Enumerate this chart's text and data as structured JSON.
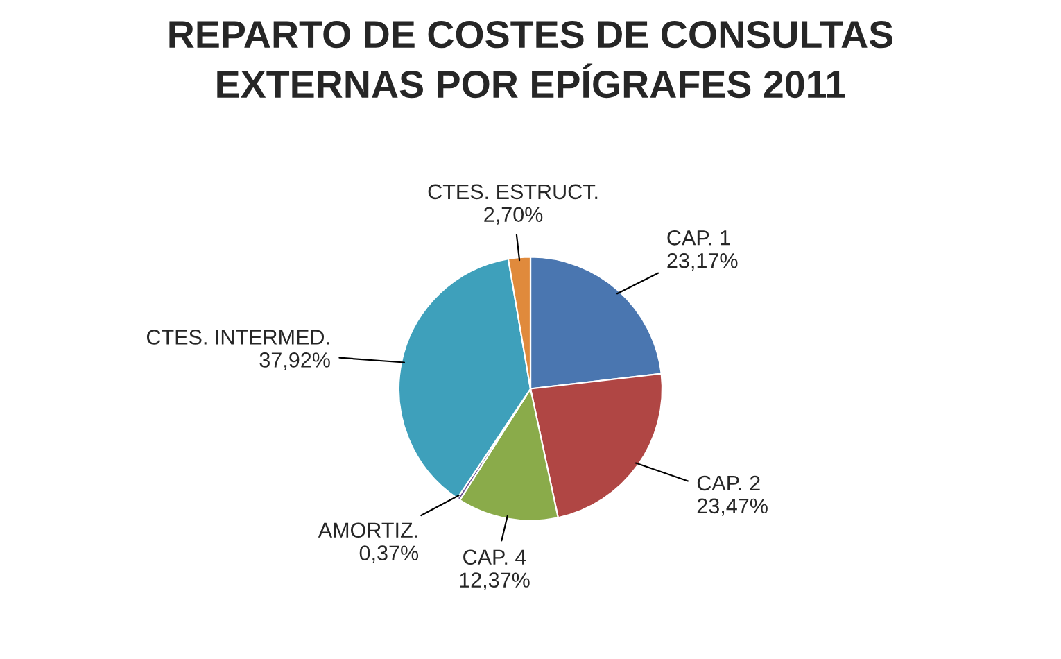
{
  "chart_data": {
    "type": "pie",
    "title": "REPARTO DE COSTES DE CONSULTAS\nEXTERNAS POR EPÍGRAFES 2011",
    "categories": [
      "CAP. 1",
      "CAP. 2",
      "CAP. 4",
      "AMORTIZ.",
      "CTES. INTERMED.",
      "CTES. ESTRUCT."
    ],
    "values": [
      23.17,
      23.47,
      12.37,
      0.37,
      37.92,
      2.7
    ],
    "value_labels": [
      "23,17%",
      "23,47%",
      "12,37%",
      "0,37%",
      "37,92%",
      "2,70%"
    ],
    "colors": [
      "#4a76b0",
      "#b04644",
      "#8aab4a",
      "#6b5090",
      "#3ea0bb",
      "#e08a3c"
    ],
    "legend": false
  }
}
